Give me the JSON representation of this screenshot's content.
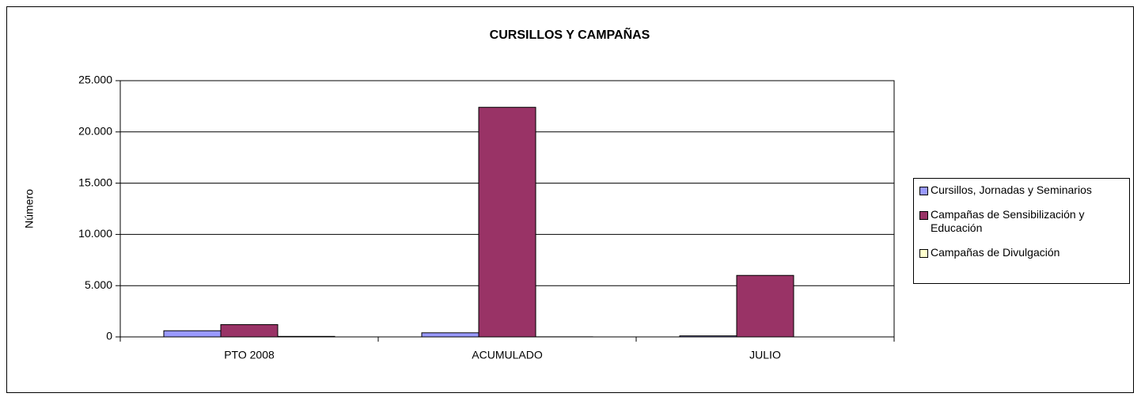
{
  "chart_data": {
    "type": "bar",
    "title": "CURSILLOS Y CAMPAÑAS",
    "ylabel": "Número",
    "categories": [
      "PTO 2008",
      "ACUMULADO",
      "JULIO"
    ],
    "series": [
      {
        "name": "Cursillos, Jornadas y Seminarios",
        "color": "#9999ff",
        "values": [
          600,
          400,
          100
        ]
      },
      {
        "name": "Campañas de Sensibilización y Educación",
        "color": "#993366",
        "values": [
          1200,
          22400,
          6000
        ]
      },
      {
        "name": "Campañas de Divulgación",
        "color": "#ffffcc",
        "values": [
          50,
          10,
          0
        ]
      }
    ],
    "ylim": [
      0,
      25000
    ],
    "yticks": [
      0,
      {
        "value": 5000,
        "label": "5.000"
      },
      {
        "value": 10000,
        "label": "10.000"
      },
      {
        "value": 15000,
        "label": "15.000"
      },
      {
        "value": 20000,
        "label": "20.000"
      },
      {
        "value": 25000,
        "label": "25.000"
      }
    ],
    "grid": true,
    "legend": "right"
  }
}
